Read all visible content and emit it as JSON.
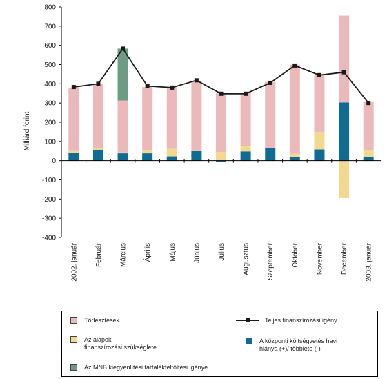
{
  "chart_data": {
    "type": "bar",
    "stacked": true,
    "ylabel": "Milliárd forint",
    "ylim": [
      -400,
      800
    ],
    "yticks": [
      -400,
      -300,
      -200,
      -100,
      0,
      100,
      200,
      300,
      400,
      500,
      600,
      700,
      800
    ],
    "categories": [
      "2002. január",
      "Február",
      "Március",
      "Április",
      "Május",
      "Június",
      "Július",
      "Augusztus",
      "Szeptember",
      "Október",
      "November",
      "December",
      "2003. január"
    ],
    "series": [
      {
        "name": "A központi költségvetés havi hiánya (+)/ többlete (-)",
        "color": "#0e6c94",
        "values": [
          42,
          57,
          38,
          38,
          22,
          50,
          -5,
          48,
          65,
          18,
          58,
          303,
          18
        ]
      },
      {
        "name": "Az alapok finanszírozási szükséglete",
        "color": "#f3d88f",
        "values": [
          8,
          8,
          5,
          15,
          40,
          5,
          45,
          28,
          0,
          18,
          92,
          -195,
          35
        ]
      },
      {
        "name": "Törlesztések",
        "color": "#ecb9bb",
        "values": [
          330,
          335,
          270,
          330,
          320,
          360,
          305,
          275,
          345,
          463,
          295,
          452,
          252
        ]
      },
      {
        "name": "Az MNB kiegyenlítési tartalékfeltöltési igénye",
        "color": "#6d9b84",
        "values": [
          0,
          0,
          270,
          0,
          0,
          0,
          0,
          0,
          0,
          0,
          0,
          0,
          0
        ]
      }
    ],
    "line": {
      "name": "Teljes finanszírozási igény",
      "color": "#1a1a1a",
      "values": [
        383,
        400,
        583,
        388,
        380,
        418,
        348,
        348,
        405,
        495,
        445,
        460,
        300
      ]
    },
    "grid": false,
    "legend_position": "bottom"
  },
  "legend": {
    "items": [
      {
        "label": "Törlesztések",
        "color": "#ecb9bb"
      },
      {
        "label": "Az alapok\nfinanszírozási szükséglete",
        "color": "#f3d88f"
      },
      {
        "label": "Az MNB kiegyenlítési tartalékfeltöltési igénye",
        "color": "#6d9b84"
      },
      {
        "label": "Teljes finanszírozási igény"
      },
      {
        "label": "A központi költségvetés havi\nhiánya (+)/ többlete (-)",
        "color": "#0e6c94"
      }
    ]
  }
}
